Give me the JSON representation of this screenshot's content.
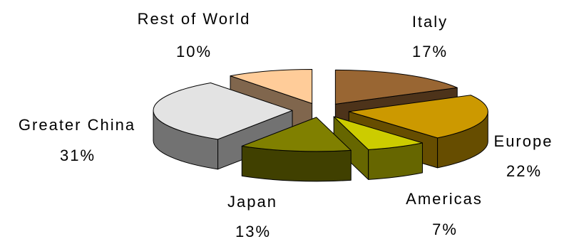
{
  "chart_data": {
    "type": "pie",
    "three_d": true,
    "exploded": true,
    "legend": false,
    "categories": [
      "Italy",
      "Europe",
      "Americas",
      "Japan",
      "Greater China",
      "Rest of World"
    ],
    "values": [
      17,
      22,
      7,
      13,
      31,
      10
    ],
    "data_labels": [
      "17%",
      "22%",
      "7%",
      "13%",
      "31%",
      "10%"
    ],
    "colors": [
      "#996633",
      "#CC9900",
      "#CCCC00",
      "#808000",
      "#E3E3E3",
      "#FFCC99"
    ]
  }
}
